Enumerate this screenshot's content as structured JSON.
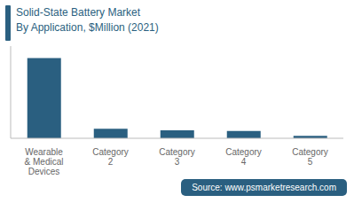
{
  "chart_data": {
    "type": "bar",
    "title": "Solid-State Battery Market",
    "subtitle": "By Application, $Million (2021)",
    "categories": [
      "Wearable\n& Medical\nDevices",
      "Category\n2",
      "Category\n3",
      "Category\n4",
      "Category\n5"
    ],
    "values": [
      100,
      12,
      10,
      9,
      3
    ],
    "color": "#2a5f80",
    "ylim": [
      0,
      115
    ],
    "tick_labels": "x",
    "grid": false,
    "annotations": [
      "Source: www.psmarketresearch.com"
    ]
  }
}
